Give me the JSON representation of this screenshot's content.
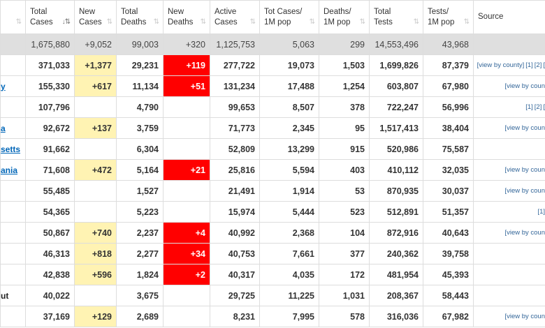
{
  "columns": [
    {
      "label": "",
      "sort": "⇅"
    },
    {
      "label": "Total\nCases",
      "sort": "↓⇅"
    },
    {
      "label": "New\nCases",
      "sort": "⇅"
    },
    {
      "label": "Total\nDeaths",
      "sort": "⇅"
    },
    {
      "label": "New\nDeaths",
      "sort": "⇅"
    },
    {
      "label": "Active\nCases",
      "sort": "⇅"
    },
    {
      "label": "Tot Cases/\n1M pop",
      "sort": "⇅"
    },
    {
      "label": "Deaths/\n1M pop",
      "sort": "⇅"
    },
    {
      "label": "Total\nTests",
      "sort": "⇅"
    },
    {
      "label": "Tests/\n1M pop",
      "sort": "⇅"
    },
    {
      "label": "Source",
      "sort": ""
    }
  ],
  "total_row": {
    "state": "",
    "total_cases": "1,675,880",
    "new_cases": "+9,052",
    "total_deaths": "99,003",
    "new_deaths": "+320",
    "active_cases": "1,125,753",
    "cases_per_m": "5,063",
    "deaths_per_m": "299",
    "total_tests": "14,553,496",
    "tests_per_m": "43,968",
    "source": []
  },
  "rows": [
    {
      "state": "",
      "state_link": false,
      "total_cases": "371,033",
      "new_cases": "+1,377",
      "total_deaths": "29,231",
      "new_deaths": "+119",
      "active_cases": "277,722",
      "cases_per_m": "19,073",
      "deaths_per_m": "1,503",
      "total_tests": "1,699,826",
      "tests_per_m": "87,379",
      "source": [
        "[view by county]",
        "[1]",
        "[2]",
        "["
      ]
    },
    {
      "state": "y",
      "state_link": true,
      "total_cases": "155,330",
      "new_cases": "+617",
      "total_deaths": "11,134",
      "new_deaths": "+51",
      "active_cases": "131,234",
      "cases_per_m": "17,488",
      "deaths_per_m": "1,254",
      "total_tests": "603,807",
      "tests_per_m": "67,980",
      "source": [
        "[view by coun"
      ]
    },
    {
      "state": "",
      "state_link": false,
      "total_cases": "107,796",
      "new_cases": "",
      "total_deaths": "4,790",
      "new_deaths": "",
      "active_cases": "99,653",
      "cases_per_m": "8,507",
      "deaths_per_m": "378",
      "total_tests": "722,247",
      "tests_per_m": "56,996",
      "source": [
        "[1]",
        "[2]",
        "["
      ]
    },
    {
      "state": "a",
      "state_link": true,
      "total_cases": "92,672",
      "new_cases": "+137",
      "total_deaths": "3,759",
      "new_deaths": "",
      "active_cases": "71,773",
      "cases_per_m": "2,345",
      "deaths_per_m": "95",
      "total_tests": "1,517,413",
      "tests_per_m": "38,404",
      "source": [
        "[view by coun"
      ]
    },
    {
      "state": "setts",
      "state_link": true,
      "total_cases": "91,662",
      "new_cases": "",
      "total_deaths": "6,304",
      "new_deaths": "",
      "active_cases": "52,809",
      "cases_per_m": "13,299",
      "deaths_per_m": "915",
      "total_tests": "520,986",
      "tests_per_m": "75,587",
      "source": []
    },
    {
      "state": "ania",
      "state_link": true,
      "total_cases": "71,608",
      "new_cases": "+472",
      "total_deaths": "5,164",
      "new_deaths": "+21",
      "active_cases": "25,816",
      "cases_per_m": "5,594",
      "deaths_per_m": "403",
      "total_tests": "410,112",
      "tests_per_m": "32,035",
      "source": [
        "[view by coun"
      ]
    },
    {
      "state": "",
      "state_link": false,
      "total_cases": "55,485",
      "new_cases": "",
      "total_deaths": "1,527",
      "new_deaths": "",
      "active_cases": "21,491",
      "cases_per_m": "1,914",
      "deaths_per_m": "53",
      "total_tests": "870,935",
      "tests_per_m": "30,037",
      "source": [
        "[view by coun"
      ]
    },
    {
      "state": "",
      "state_link": false,
      "total_cases": "54,365",
      "new_cases": "",
      "total_deaths": "5,223",
      "new_deaths": "",
      "active_cases": "15,974",
      "cases_per_m": "5,444",
      "deaths_per_m": "523",
      "total_tests": "512,891",
      "tests_per_m": "51,357",
      "source": [
        "[1]"
      ]
    },
    {
      "state": "",
      "state_link": false,
      "total_cases": "50,867",
      "new_cases": "+740",
      "total_deaths": "2,237",
      "new_deaths": "+4",
      "active_cases": "40,992",
      "cases_per_m": "2,368",
      "deaths_per_m": "104",
      "total_tests": "872,916",
      "tests_per_m": "40,643",
      "source": [
        "[view by coun"
      ]
    },
    {
      "state": "",
      "state_link": false,
      "total_cases": "46,313",
      "new_cases": "+818",
      "total_deaths": "2,277",
      "new_deaths": "+34",
      "active_cases": "40,753",
      "cases_per_m": "7,661",
      "deaths_per_m": "377",
      "total_tests": "240,362",
      "tests_per_m": "39,758",
      "source": []
    },
    {
      "state": "",
      "state_link": false,
      "total_cases": "42,838",
      "new_cases": "+596",
      "total_deaths": "1,824",
      "new_deaths": "+2",
      "active_cases": "40,317",
      "cases_per_m": "4,035",
      "deaths_per_m": "172",
      "total_tests": "481,954",
      "tests_per_m": "45,393",
      "source": []
    },
    {
      "state": "ut",
      "state_link": false,
      "total_cases": "40,022",
      "new_cases": "",
      "total_deaths": "3,675",
      "new_deaths": "",
      "active_cases": "29,725",
      "cases_per_m": "11,225",
      "deaths_per_m": "1,031",
      "total_tests": "208,367",
      "tests_per_m": "58,443",
      "source": []
    },
    {
      "state": "",
      "state_link": false,
      "total_cases": "37,169",
      "new_cases": "+129",
      "total_deaths": "2,689",
      "new_deaths": "",
      "active_cases": "8,231",
      "cases_per_m": "7,995",
      "deaths_per_m": "578",
      "total_tests": "316,036",
      "tests_per_m": "67,982",
      "source": [
        "[view by coun"
      ]
    }
  ],
  "colors": {
    "new_cases_bg": "#fff3b3",
    "new_deaths_bg": "#ff0000",
    "total_row_bg": "#dfdfdf",
    "link": "#0066b8"
  }
}
